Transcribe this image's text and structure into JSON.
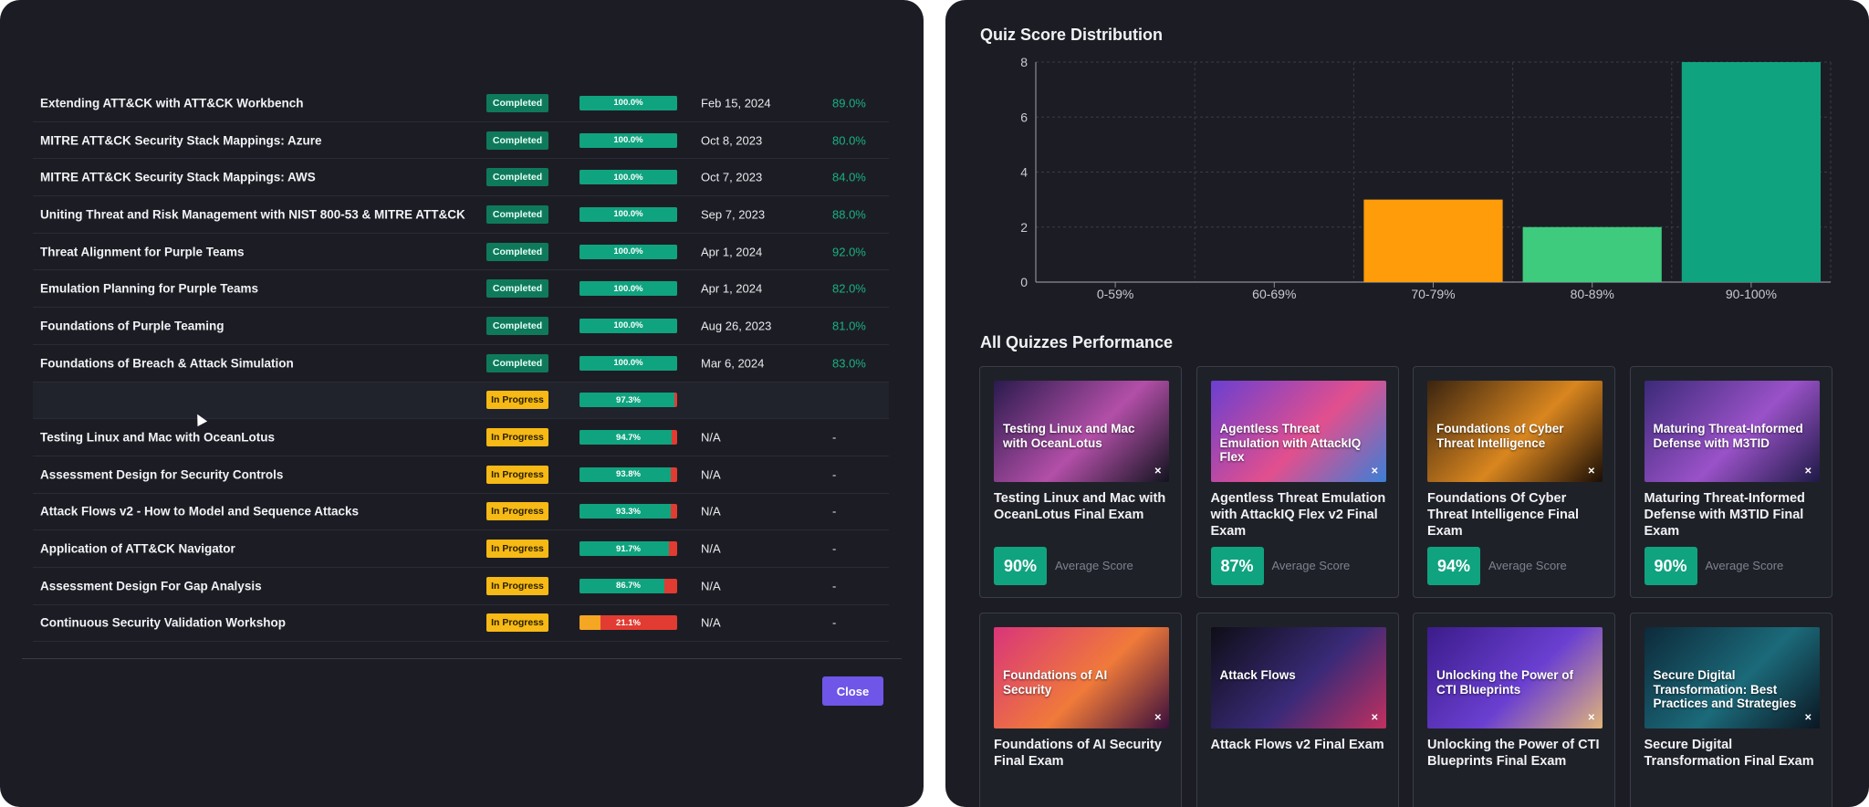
{
  "courses": [
    {
      "name": "Extending ATT&CK with ATT&CK Workbench",
      "status": "Completed",
      "progress": 100.0,
      "progress_label": "100.0%",
      "date": "Feb 15, 2024",
      "score": "89.0%"
    },
    {
      "name": "MITRE ATT&CK Security Stack Mappings: Azure",
      "status": "Completed",
      "progress": 100.0,
      "progress_label": "100.0%",
      "date": "Oct 8, 2023",
      "score": "80.0%"
    },
    {
      "name": "MITRE ATT&CK Security Stack Mappings: AWS",
      "status": "Completed",
      "progress": 100.0,
      "progress_label": "100.0%",
      "date": "Oct 7, 2023",
      "score": "84.0%"
    },
    {
      "name": "Uniting Threat and Risk Management with NIST 800-53 & MITRE ATT&CK",
      "status": "Completed",
      "progress": 100.0,
      "progress_label": "100.0%",
      "date": "Sep 7, 2023",
      "score": "88.0%"
    },
    {
      "name": "Threat Alignment for Purple Teams",
      "status": "Completed",
      "progress": 100.0,
      "progress_label": "100.0%",
      "date": "Apr 1, 2024",
      "score": "92.0%"
    },
    {
      "name": "Emulation Planning for Purple Teams",
      "status": "Completed",
      "progress": 100.0,
      "progress_label": "100.0%",
      "date": "Apr 1, 2024",
      "score": "82.0%"
    },
    {
      "name": "Foundations of Purple Teaming",
      "status": "Completed",
      "progress": 100.0,
      "progress_label": "100.0%",
      "date": "Aug 26, 2023",
      "score": "81.0%"
    },
    {
      "name": "Foundations of Breach & Attack Simulation",
      "status": "Completed",
      "progress": 100.0,
      "progress_label": "100.0%",
      "date": "Mar 6, 2024",
      "score": "83.0%"
    },
    {
      "name": "",
      "status": "In Progress",
      "progress": 97.3,
      "progress_label": "97.3%",
      "date": "",
      "score": ""
    },
    {
      "name": "Testing Linux and Mac with OceanLotus",
      "status": "In Progress",
      "progress": 94.7,
      "progress_label": "94.7%",
      "date": "N/A",
      "score": "-"
    },
    {
      "name": "Assessment Design for Security Controls",
      "status": "In Progress",
      "progress": 93.8,
      "progress_label": "93.8%",
      "date": "N/A",
      "score": "-"
    },
    {
      "name": "Attack Flows v2 - How to Model and Sequence Attacks",
      "status": "In Progress",
      "progress": 93.3,
      "progress_label": "93.3%",
      "date": "N/A",
      "score": "-"
    },
    {
      "name": "Application of ATT&CK Navigator",
      "status": "In Progress",
      "progress": 91.7,
      "progress_label": "91.7%",
      "date": "N/A",
      "score": "-"
    },
    {
      "name": "Assessment Design For Gap Analysis",
      "status": "In Progress",
      "progress": 86.7,
      "progress_label": "86.7%",
      "date": "N/A",
      "score": "-"
    },
    {
      "name": "Continuous Security Validation Workshop",
      "status": "In Progress",
      "progress": 21.1,
      "progress_label": "21.1%",
      "date": "N/A",
      "score": "-"
    }
  ],
  "close_label": "Close",
  "chart_title": "Quiz Score Distribution",
  "chart_data": {
    "type": "bar",
    "categories": [
      "0-59%",
      "60-69%",
      "70-79%",
      "80-89%",
      "90-100%"
    ],
    "values": [
      0,
      0,
      3,
      2,
      8
    ],
    "colors": [
      "#e23b32",
      "#e23b32",
      "#ff9c0a",
      "#3fcb7e",
      "#10a37f"
    ],
    "yticks": [
      0,
      2,
      4,
      6,
      8
    ],
    "ylim": [
      0,
      8
    ],
    "grid": true,
    "title": "",
    "xlabel": "",
    "ylabel": ""
  },
  "performance_title": "All Quizzes Performance",
  "quizzes": [
    {
      "thumb_text": "Testing Linux and Mac with OceanLotus",
      "title": "Testing Linux and Mac with OceanLotus Final Exam",
      "score": "90%",
      "score_label": "Average Score",
      "colors": [
        "#2a1b4d",
        "#b34fa8",
        "#12141f"
      ]
    },
    {
      "thumb_text": "Agentless Threat Emulation with AttackIQ Flex",
      "title": "Agentless Threat Emulation with AttackIQ Flex v2 Final Exam",
      "score": "87%",
      "score_label": "Average Score",
      "colors": [
        "#6a3fd1",
        "#e24f8e",
        "#3b7fd6"
      ]
    },
    {
      "thumb_text": "Foundations of Cyber Threat Intelligence",
      "title": "Foundations Of Cyber Threat Intelligence Final Exam",
      "score": "94%",
      "score_label": "Average Score",
      "colors": [
        "#3a2410",
        "#d9861f",
        "#1a0e06"
      ]
    },
    {
      "thumb_text": "Maturing Threat-Informed Defense with M3TID",
      "title": "Maturing Threat-Informed Defense with M3TID Final Exam",
      "score": "90%",
      "score_label": "Average Score",
      "colors": [
        "#3b2a78",
        "#9a52c8",
        "#1e1a46"
      ]
    },
    {
      "thumb_text": "Foundations of AI Security",
      "title": "Foundations of AI Security Final Exam",
      "score": "",
      "score_label": "",
      "colors": [
        "#d9357a",
        "#f07a3a",
        "#3a0f3d"
      ]
    },
    {
      "thumb_text": "Attack Flows",
      "title": "Attack Flows v2 Final Exam",
      "score": "",
      "score_label": "",
      "colors": [
        "#0e0e16",
        "#3a2a78",
        "#c2305f"
      ]
    },
    {
      "thumb_text": "Unlocking the Power of CTI Blueprints",
      "title": "Unlocking the Power of CTI Blueprints Final Exam",
      "score": "",
      "score_label": "",
      "colors": [
        "#3b1c8a",
        "#6a3fd1",
        "#e0b47a"
      ]
    },
    {
      "thumb_text": "Secure Digital Transformation: Best Practices and Strategies",
      "title": "Secure Digital Transformation Final Exam",
      "score": "",
      "score_label": "",
      "colors": [
        "#0d2a3a",
        "#1b6a7a",
        "#0b1622"
      ]
    }
  ]
}
